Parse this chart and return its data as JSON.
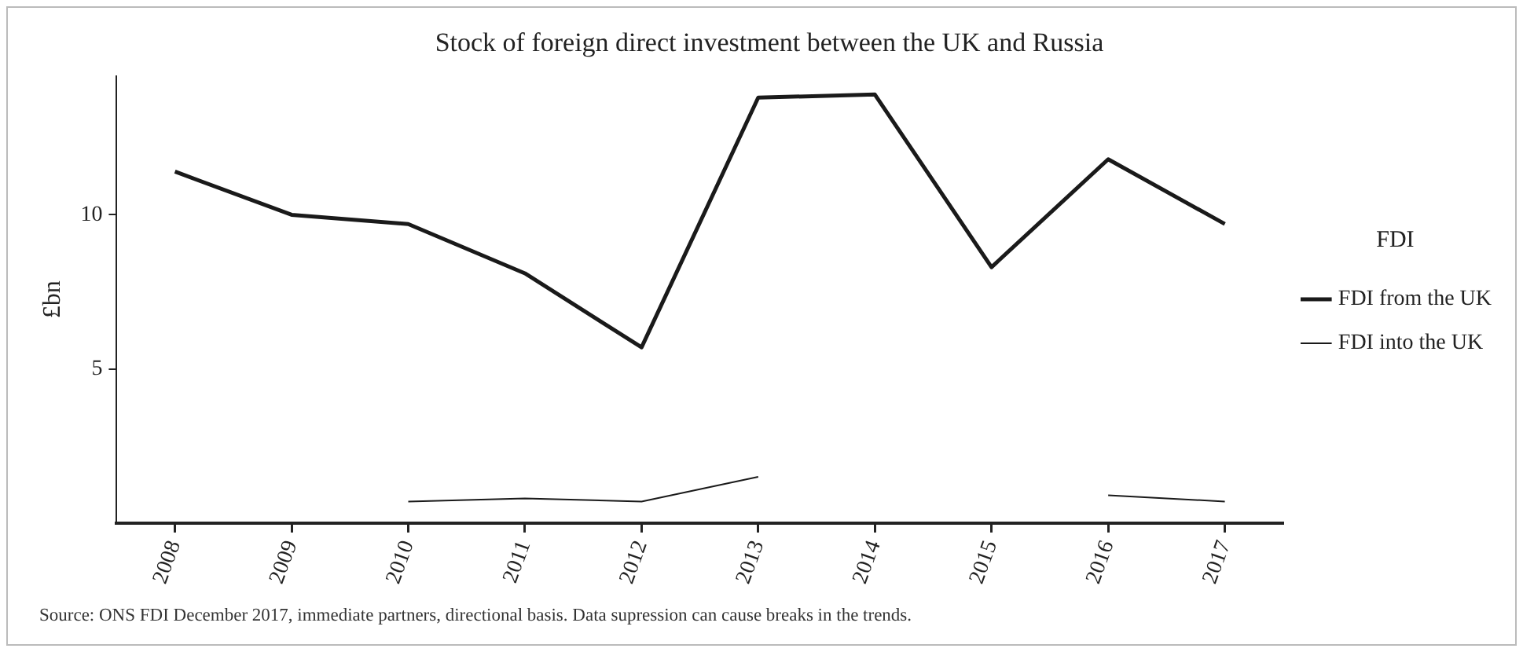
{
  "chart_data": {
    "type": "line",
    "title": "Stock of foreign direct investment between the UK and Russia",
    "ylabel": "£bn",
    "legend_title": "FDI",
    "legend": "right",
    "grid": false,
    "marker": "none",
    "line_style": "solid",
    "categories": [
      "2008",
      "2009",
      "2010",
      "2011",
      "2012",
      "2013",
      "2014",
      "2015",
      "2016",
      "2017"
    ],
    "ylim": [
      0,
      14.5
    ],
    "yticks": [
      5,
      10
    ],
    "series": [
      {
        "name": "FDI from the UK",
        "color": "#1a1a1a",
        "values": [
          11.4,
          10.0,
          9.7,
          8.1,
          5.7,
          13.8,
          13.9,
          8.3,
          11.8,
          9.7
        ]
      },
      {
        "name": "FDI into the UK",
        "color": "#1a1a1a",
        "values": [
          null,
          null,
          0.7,
          0.8,
          0.7,
          1.5,
          null,
          null,
          0.9,
          0.7
        ]
      }
    ],
    "annotations": [
      "Source: ONS FDI December 2017, immediate partners, directional basis. Data supression can cause breaks in the trends."
    ]
  }
}
